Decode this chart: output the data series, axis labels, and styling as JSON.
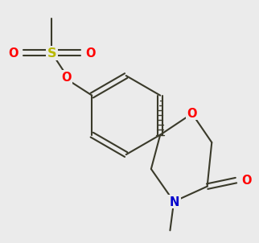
{
  "background_color": "#ebebeb",
  "bond_color": "#3a3a2a",
  "O_color": "#ff0000",
  "S_color": "#b8b800",
  "N_color": "#0000cc",
  "lw": 1.5,
  "fs": 10.5
}
